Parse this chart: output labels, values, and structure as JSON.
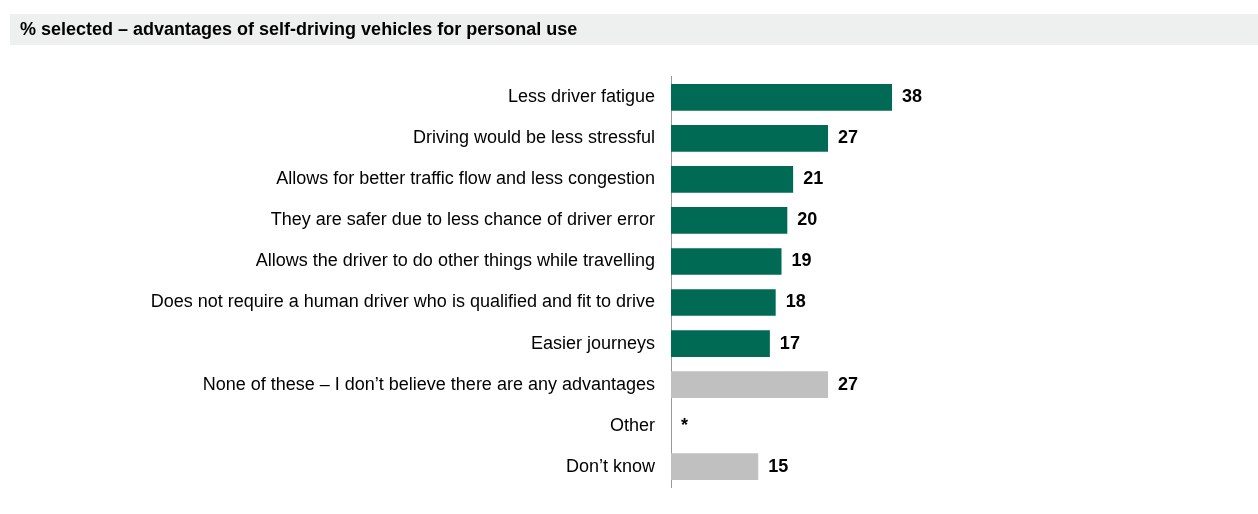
{
  "chart_data": {
    "type": "bar",
    "orientation": "horizontal",
    "title": "% selected – advantages of self-driving vehicles for personal use",
    "categories": [
      "Less driver fatigue",
      "Driving would be less stressful",
      "Allows for better traffic flow and less congestion",
      "They are safer due to less chance of driver error",
      "Allows the driver to do other things while travelling",
      "Does not require a human driver who is qualified and fit to drive",
      "Easier journeys",
      "None of these – I don’t believe there are any advantages",
      "Other",
      "Don’t know"
    ],
    "values": [
      38,
      27,
      21,
      20,
      19,
      18,
      17,
      27,
      0,
      15
    ],
    "value_labels": [
      "38",
      "27",
      "21",
      "20",
      "19",
      "18",
      "17",
      "27",
      "*",
      "15"
    ],
    "colors": [
      "#006a54",
      "#006a54",
      "#006a54",
      "#006a54",
      "#006a54",
      "#006a54",
      "#006a54",
      "#c0c0c0",
      "#c0c0c0",
      "#c0c0c0"
    ],
    "legend": false
  }
}
